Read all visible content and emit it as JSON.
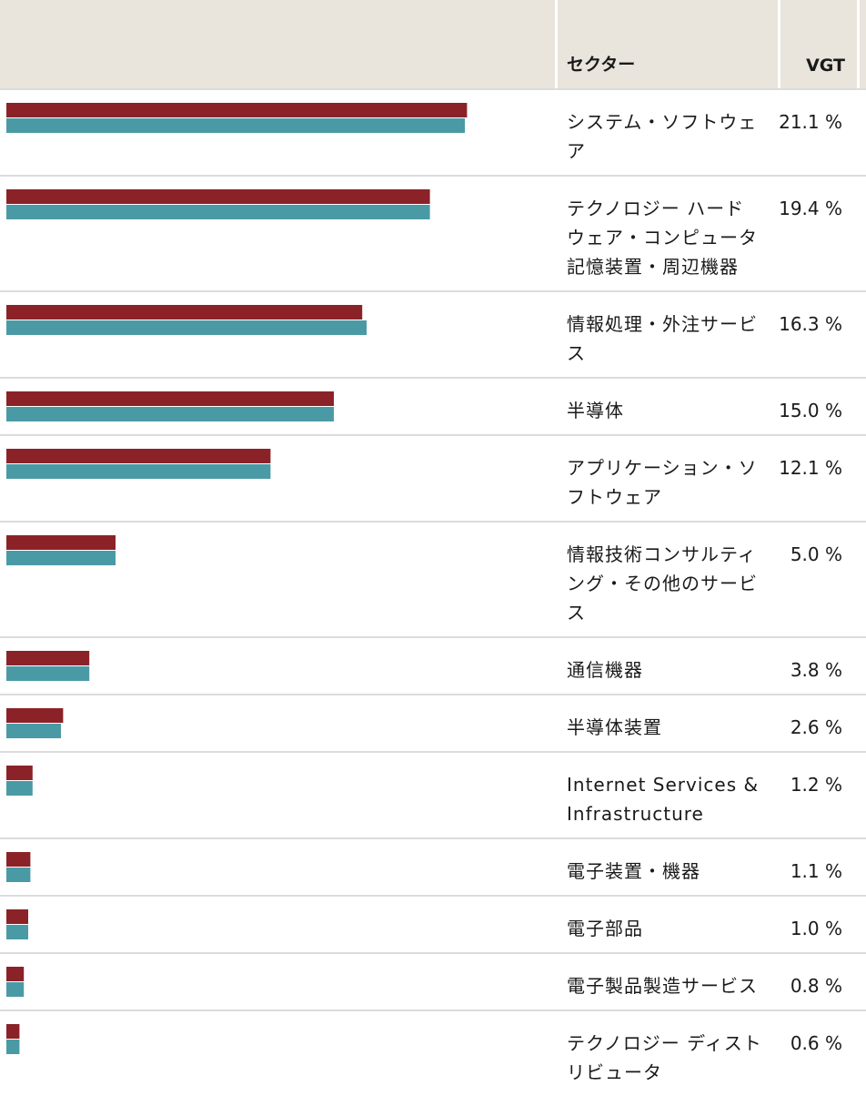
{
  "header": {
    "sector_label": "セクター",
    "fund_label": "VGT"
  },
  "colors": {
    "series_primary": "#8b2228",
    "series_secondary": "#4a9aa6",
    "header_bg": "#e9e5dc"
  },
  "chart_data": {
    "type": "bar",
    "orientation": "horizontal",
    "categories": [
      "システム・ソフトウェア",
      "テクノロジー ハードウェア・コンピュータ記憶装置・周辺機器",
      "情報処理・外注サービス",
      "半導体",
      "アプリケーション・ソフトウェア",
      "情報技術コンサルティング・その他のサービス",
      "通信機器",
      "半導体装置",
      "Internet Services & Infrastructure",
      "電子装置・機器",
      "電子部品",
      "電子製品製造サービス",
      "テクノロジー ディストリビュータ"
    ],
    "series": [
      {
        "values": [
          21.1,
          19.4,
          16.3,
          15.0,
          12.1,
          5.0,
          3.8,
          2.6,
          1.2,
          1.1,
          1.0,
          0.8,
          0.6
        ]
      },
      {
        "values": [
          21.0,
          19.4,
          16.5,
          15.0,
          12.1,
          5.0,
          3.8,
          2.5,
          1.2,
          1.1,
          1.0,
          0.8,
          0.6
        ]
      }
    ],
    "value_labels": [
      "21.1 %",
      "19.4 %",
      "16.3 %",
      "15.0 %",
      "12.1 %",
      "5.0 %",
      "3.8 %",
      "2.6 %",
      "1.2 %",
      "1.1 %",
      "1.0 %",
      "0.8 %",
      "0.6 %"
    ],
    "xlim": [
      0,
      25
    ],
    "grid": false,
    "legend": "none"
  }
}
